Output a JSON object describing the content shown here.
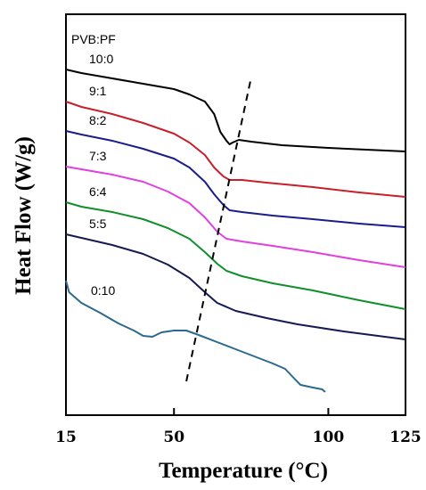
{
  "chart_data": {
    "type": "line",
    "xlabel": "Temperature (°C)",
    "ylabel": "Heat Flow (W/g)",
    "xlim": [
      15,
      125
    ],
    "x_ticks": [
      "15",
      "50",
      "100",
      "125"
    ],
    "y_ticks": [],
    "legend_title": "PVB:PF",
    "grid": false,
    "series": [
      {
        "name": "10:0",
        "color": "#000000",
        "points": [
          [
            15,
            78
          ],
          [
            20,
            82
          ],
          [
            30,
            88
          ],
          [
            40,
            94
          ],
          [
            50,
            100
          ],
          [
            55,
            106
          ],
          [
            60,
            114
          ],
          [
            63,
            128
          ],
          [
            65,
            148
          ],
          [
            67,
            158
          ],
          [
            68,
            162
          ],
          [
            69,
            160
          ],
          [
            71,
            157
          ],
          [
            75,
            159
          ],
          [
            85,
            163
          ],
          [
            100,
            166
          ],
          [
            125,
            170
          ]
        ]
      },
      {
        "name": "9:1",
        "color": "#c8202a",
        "points": [
          [
            15,
            114
          ],
          [
            20,
            120
          ],
          [
            30,
            128
          ],
          [
            40,
            138
          ],
          [
            50,
            150
          ],
          [
            55,
            160
          ],
          [
            60,
            174
          ],
          [
            63,
            188
          ],
          [
            66,
            198
          ],
          [
            68,
            202
          ],
          [
            72,
            202
          ],
          [
            80,
            205
          ],
          [
            95,
            210
          ],
          [
            110,
            216
          ],
          [
            125,
            221
          ]
        ]
      },
      {
        "name": "8:2",
        "color": "#1a1e8c",
        "points": [
          [
            15,
            147
          ],
          [
            20,
            151
          ],
          [
            30,
            158
          ],
          [
            40,
            167
          ],
          [
            50,
            178
          ],
          [
            55,
            188
          ],
          [
            60,
            204
          ],
          [
            63,
            218
          ],
          [
            66,
            230
          ],
          [
            68,
            236
          ],
          [
            72,
            238
          ],
          [
            82,
            242
          ],
          [
            95,
            246
          ],
          [
            110,
            251
          ],
          [
            125,
            255
          ]
        ]
      },
      {
        "name": "7:3",
        "color": "#e040e0",
        "points": [
          [
            15,
            187
          ],
          [
            20,
            190
          ],
          [
            30,
            196
          ],
          [
            40,
            204
          ],
          [
            48,
            215
          ],
          [
            55,
            228
          ],
          [
            60,
            244
          ],
          [
            64,
            260
          ],
          [
            67,
            268
          ],
          [
            72,
            271
          ],
          [
            82,
            276
          ],
          [
            95,
            283
          ],
          [
            110,
            292
          ],
          [
            125,
            300
          ]
        ]
      },
      {
        "name": "6:4",
        "color": "#108f2b",
        "points": [
          [
            15,
            227
          ],
          [
            20,
            232
          ],
          [
            30,
            238
          ],
          [
            40,
            246
          ],
          [
            48,
            256
          ],
          [
            55,
            268
          ],
          [
            60,
            283
          ],
          [
            64,
            296
          ],
          [
            67,
            304
          ],
          [
            72,
            310
          ],
          [
            82,
            318
          ],
          [
            95,
            326
          ],
          [
            110,
            337
          ],
          [
            125,
            347
          ]
        ]
      },
      {
        "name": "5:5",
        "color": "#161a52",
        "points": [
          [
            15,
            263
          ],
          [
            20,
            267
          ],
          [
            30,
            275
          ],
          [
            40,
            285
          ],
          [
            48,
            297
          ],
          [
            55,
            312
          ],
          [
            60,
            328
          ],
          [
            64,
            340
          ],
          [
            70,
            349
          ],
          [
            80,
            357
          ],
          [
            90,
            364
          ],
          [
            105,
            372
          ],
          [
            125,
            381
          ]
        ]
      },
      {
        "name": "0:10",
        "color": "#2a6a8e",
        "points": [
          [
            15,
            315
          ],
          [
            16,
            328
          ],
          [
            20,
            340
          ],
          [
            26,
            351
          ],
          [
            32,
            363
          ],
          [
            37,
            371
          ],
          [
            40,
            377
          ],
          [
            43,
            378
          ],
          [
            46,
            373
          ],
          [
            50,
            371
          ],
          [
            54,
            371
          ],
          [
            58,
            376
          ],
          [
            64,
            384
          ],
          [
            70,
            392
          ],
          [
            76,
            400
          ],
          [
            82,
            408
          ],
          [
            86,
            414
          ],
          [
            89,
            425
          ],
          [
            91,
            432
          ],
          [
            95,
            435
          ],
          [
            98,
            437
          ],
          [
            99,
            440
          ]
        ]
      }
    ],
    "annotations": [
      {
        "type": "dashed-line",
        "from": [
          54,
          428
        ],
        "to": [
          75,
          87
        ]
      }
    ]
  }
}
